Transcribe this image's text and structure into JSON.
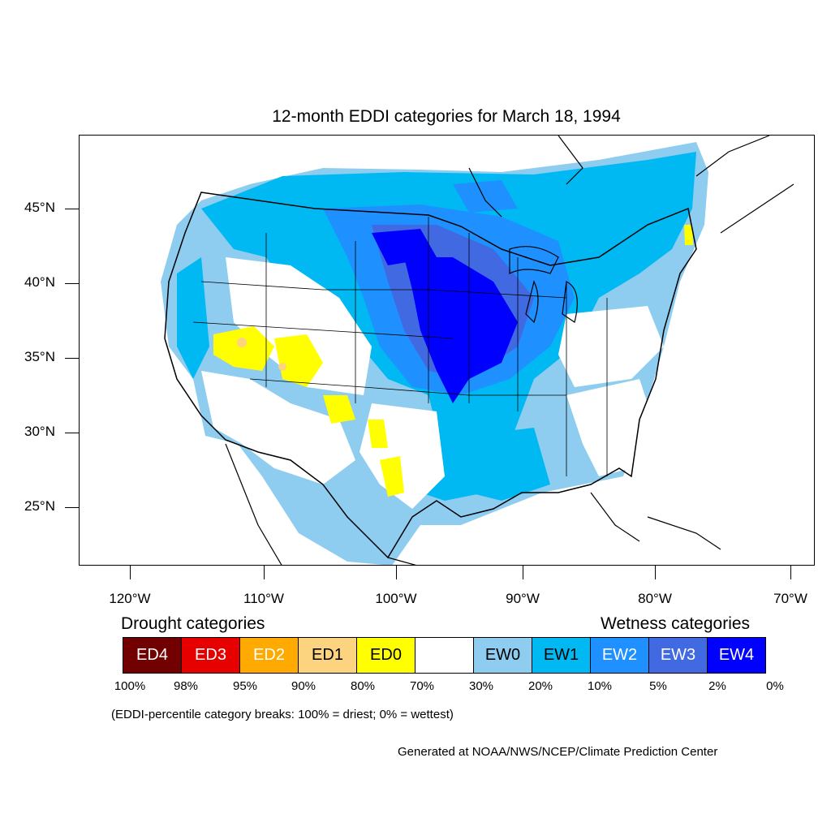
{
  "title": "12-month EDDI categories for March 18, 1994",
  "latitude_labels": [
    "45°N",
    "40°N",
    "35°N",
    "30°N",
    "25°N"
  ],
  "longitude_labels": [
    "120°W",
    "110°W",
    "100°W",
    "90°W",
    "80°W",
    "70°W"
  ],
  "legend": {
    "drought_heading": "Drought categories",
    "wetness_heading": "Wetness categories",
    "categories": [
      {
        "label": "ED4",
        "color": "#730000"
      },
      {
        "label": "ED3",
        "color": "#e60000"
      },
      {
        "label": "ED2",
        "color": "#ffaa00"
      },
      {
        "label": "ED1",
        "color": "#fcd37f"
      },
      {
        "label": "ED0",
        "color": "#ffff00"
      },
      {
        "label": "",
        "color": "#ffffff"
      },
      {
        "label": "EW0",
        "color": "#8ecdf0"
      },
      {
        "label": "EW1",
        "color": "#00b9f2"
      },
      {
        "label": "EW2",
        "color": "#1e90ff"
      },
      {
        "label": "EW3",
        "color": "#4169e1"
      },
      {
        "label": "EW4",
        "color": "#0000ff"
      }
    ],
    "breaks": [
      "100%",
      "98%",
      "95%",
      "90%",
      "80%",
      "70%",
      "30%",
      "20%",
      "10%",
      "5%",
      "2%",
      "0%"
    ]
  },
  "note": "(EDDI-percentile category breaks: 100% = driest; 0% = wettest)",
  "credit": "Generated at NOAA/NWS/NCEP/Climate Prediction Center"
}
